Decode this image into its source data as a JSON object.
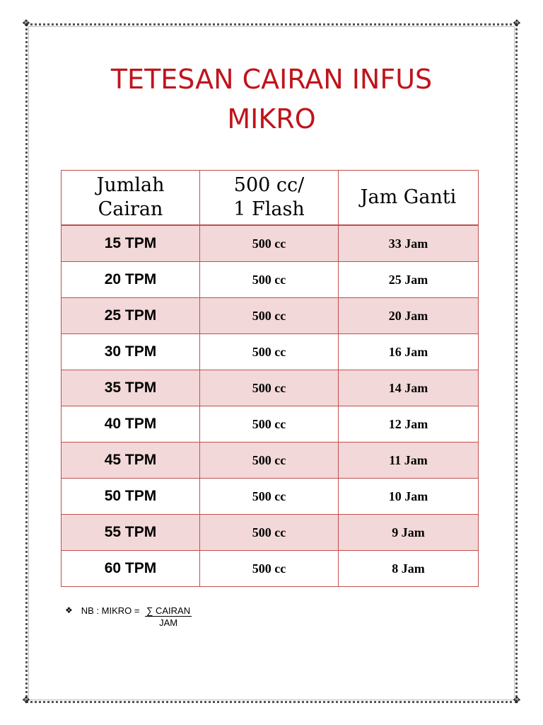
{
  "title_line1": "TETESAN CAIRAN INFUS",
  "title_line2": "MIKRO",
  "table": {
    "headers": {
      "col1_line1": "Jumlah",
      "col1_line2": "Cairan",
      "col2_line1": "500 cc/",
      "col2_line2": "1 Flash",
      "col3": "Jam Ganti"
    },
    "rows": [
      {
        "rate": "15 TPM",
        "volume": "500 cc",
        "hours": "33 Jam"
      },
      {
        "rate": "20 TPM",
        "volume": "500 cc",
        "hours": "25 Jam"
      },
      {
        "rate": "25 TPM",
        "volume": "500 cc",
        "hours": "20 Jam"
      },
      {
        "rate": "30 TPM",
        "volume": "500 cc",
        "hours": "16 Jam"
      },
      {
        "rate": "35 TPM",
        "volume": "500 cc",
        "hours": "14 Jam"
      },
      {
        "rate": "40 TPM",
        "volume": "500 cc",
        "hours": "12 Jam"
      },
      {
        "rate": "45 TPM",
        "volume": "500 cc",
        "hours": "11 Jam"
      },
      {
        "rate": "50 TPM",
        "volume": "500 cc",
        "hours": "10 Jam"
      },
      {
        "rate": "55 TPM",
        "volume": "500 cc",
        "hours": "9 Jam"
      },
      {
        "rate": "60 TPM",
        "volume": "500 cc",
        "hours": "8 Jam"
      }
    ]
  },
  "note": {
    "bullet_icon": "diamond-bullet-icon",
    "prefix": "NB : MIKRO = ",
    "numerator": "∑ CAIRAN",
    "denominator": "JAM"
  },
  "colors": {
    "title": "#c0141c",
    "table_border": "#c0504d",
    "shaded_row": "#f2d8d8"
  }
}
